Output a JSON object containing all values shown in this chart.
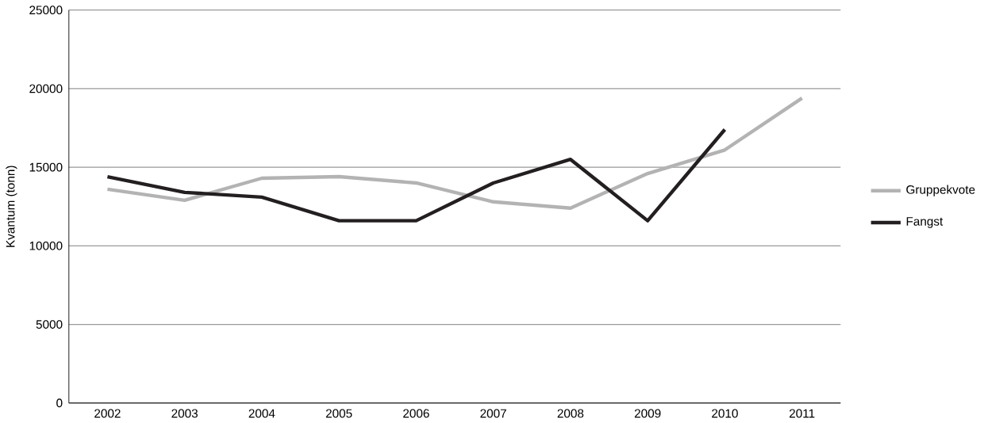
{
  "chart_data": {
    "type": "line",
    "ylabel": "Kvantum (tonn)",
    "categories": [
      "2002",
      "2003",
      "2004",
      "2005",
      "2006",
      "2007",
      "2008",
      "2009",
      "2010",
      "2011"
    ],
    "series": [
      {
        "name": "Gruppekvote",
        "color": "#b3b3b3",
        "values": [
          13600,
          12900,
          14300,
          14400,
          14000,
          12800,
          12400,
          14600,
          16100,
          19400
        ]
      },
      {
        "name": "Fangst",
        "color": "#231f20",
        "values": [
          14400,
          13400,
          13100,
          11600,
          11600,
          14000,
          15500,
          11600,
          17400,
          null
        ]
      }
    ],
    "ylim": [
      0,
      25000
    ],
    "yticks": [
      0,
      5000,
      10000,
      15000,
      20000,
      25000
    ],
    "grid": "y",
    "legend": "right",
    "marker": "none",
    "line_style": "solid"
  }
}
